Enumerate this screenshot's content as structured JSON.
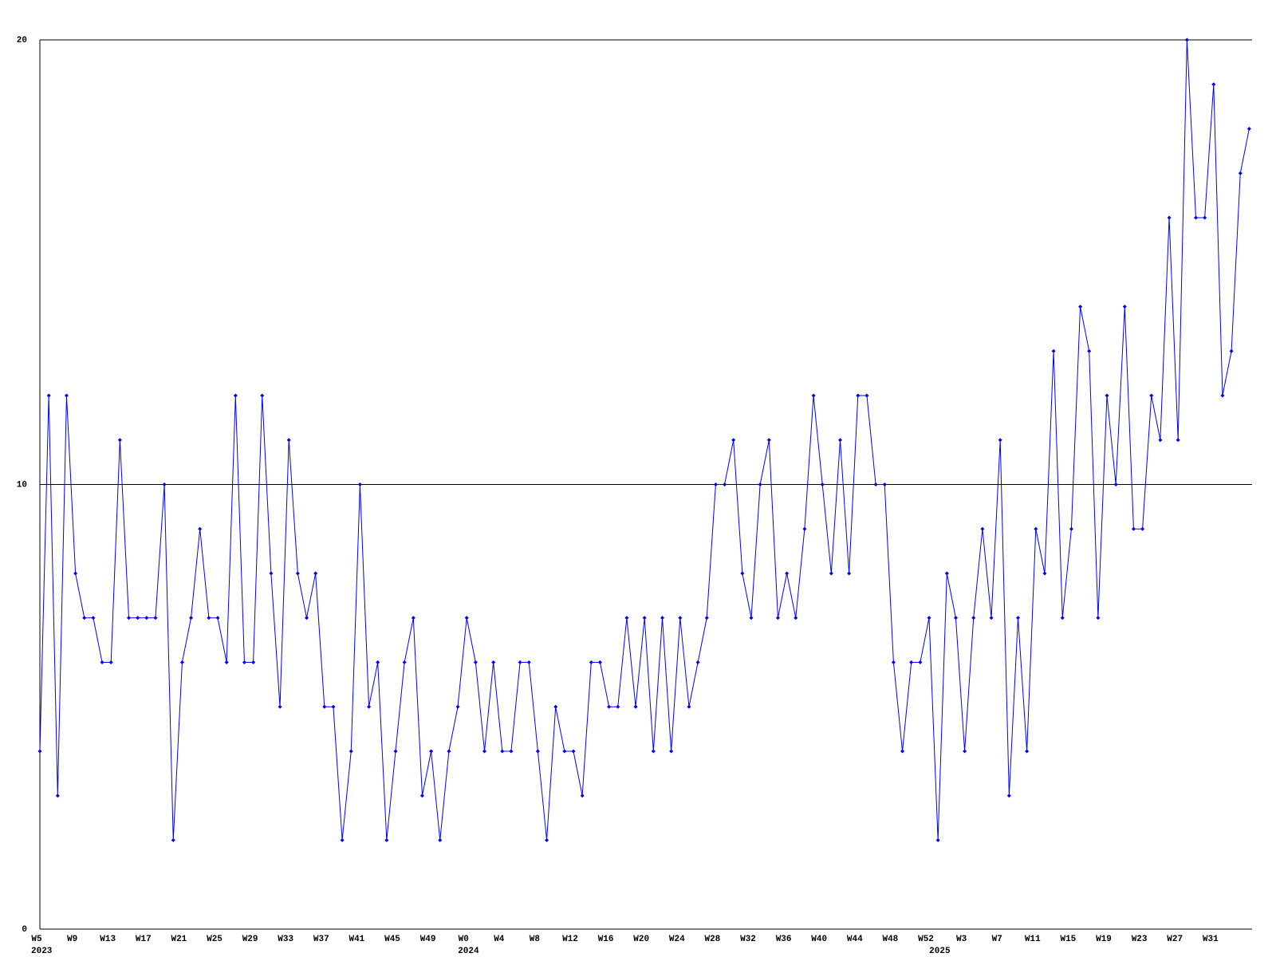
{
  "chart_data": {
    "type": "line",
    "color": "#0000ff",
    "ylim": [
      0,
      20
    ],
    "yticks": [
      0,
      10,
      20
    ],
    "grid": true,
    "categories": [
      "W5",
      null,
      null,
      null,
      "W9",
      null,
      null,
      null,
      "W13",
      null,
      null,
      null,
      "W17",
      null,
      null,
      null,
      "W21",
      null,
      null,
      null,
      "W25",
      null,
      null,
      null,
      "W29",
      null,
      null,
      null,
      "W33",
      null,
      null,
      null,
      "W37",
      null,
      null,
      null,
      "W41",
      null,
      null,
      null,
      "W45",
      null,
      null,
      null,
      "W49",
      null,
      null,
      null,
      "W0",
      null,
      null,
      null,
      "W4",
      null,
      null,
      null,
      "W8",
      null,
      null,
      null,
      "W12",
      null,
      null,
      null,
      "W16",
      null,
      null,
      null,
      "W20",
      null,
      null,
      null,
      "W24",
      null,
      null,
      null,
      "W28",
      null,
      null,
      null,
      "W32",
      null,
      null,
      null,
      "W36",
      null,
      null,
      null,
      "W40",
      null,
      null,
      null,
      "W44",
      null,
      null,
      null,
      "W48",
      null,
      null,
      null,
      "W52",
      null,
      null,
      null,
      "W3",
      null,
      null,
      null,
      "W7",
      null,
      null,
      null,
      "W11",
      null,
      null,
      null,
      "W15",
      null,
      null,
      null,
      "W19",
      null,
      null,
      null,
      "W23",
      null,
      null,
      null,
      "W27",
      null,
      null,
      null,
      "W31",
      null,
      null,
      null,
      null
    ],
    "category_years": [
      "2023",
      null,
      null,
      null,
      null,
      null,
      null,
      null,
      null,
      null,
      null,
      null,
      null,
      null,
      null,
      null,
      null,
      null,
      null,
      null,
      null,
      null,
      null,
      null,
      null,
      null,
      null,
      null,
      null,
      null,
      null,
      null,
      null,
      null,
      null,
      null,
      null,
      null,
      null,
      null,
      null,
      null,
      null,
      null,
      null,
      null,
      null,
      null,
      "2024",
      null,
      null,
      null,
      null,
      null,
      null,
      null,
      null,
      null,
      null,
      null,
      null,
      null,
      null,
      null,
      null,
      null,
      null,
      null,
      null,
      null,
      null,
      null,
      null,
      null,
      null,
      null,
      null,
      null,
      null,
      null,
      null,
      null,
      null,
      null,
      null,
      null,
      null,
      null,
      null,
      null,
      null,
      null,
      null,
      null,
      null,
      null,
      null,
      null,
      null,
      null,
      null,
      "2025",
      null,
      null,
      null,
      null,
      null,
      null,
      null,
      null,
      null,
      null,
      null,
      null,
      null,
      null,
      null,
      null,
      null,
      null,
      null,
      null,
      null,
      null,
      null,
      null,
      null,
      null,
      null,
      null,
      null,
      null,
      null,
      null,
      null,
      null,
      null
    ],
    "values": [
      4,
      12,
      3,
      12,
      8,
      7,
      7,
      6,
      6,
      11,
      7,
      7,
      7,
      7,
      10,
      2,
      6,
      7,
      9,
      7,
      7,
      6,
      12,
      6,
      6,
      12,
      8,
      5,
      11,
      8,
      7,
      8,
      5,
      5,
      2,
      4,
      10,
      5,
      6,
      2,
      4,
      6,
      7,
      3,
      4,
      2,
      4,
      5,
      7,
      6,
      4,
      6,
      4,
      4,
      6,
      6,
      4,
      2,
      5,
      4,
      4,
      3,
      6,
      6,
      5,
      5,
      7,
      5,
      7,
      4,
      7,
      4,
      7,
      5,
      6,
      7,
      10,
      10,
      11,
      8,
      7,
      10,
      11,
      7,
      8,
      7,
      9,
      12,
      10,
      8,
      11,
      8,
      12,
      12,
      10,
      10,
      6,
      4,
      6,
      6,
      7,
      2,
      8,
      7,
      4,
      7,
      9,
      7,
      11,
      3,
      7,
      4,
      9,
      8,
      13,
      7,
      9,
      14,
      13,
      7,
      12,
      10,
      14,
      9,
      9,
      12,
      11,
      16,
      11,
      20,
      16,
      16,
      19,
      12,
      13,
      17,
      18
    ]
  }
}
